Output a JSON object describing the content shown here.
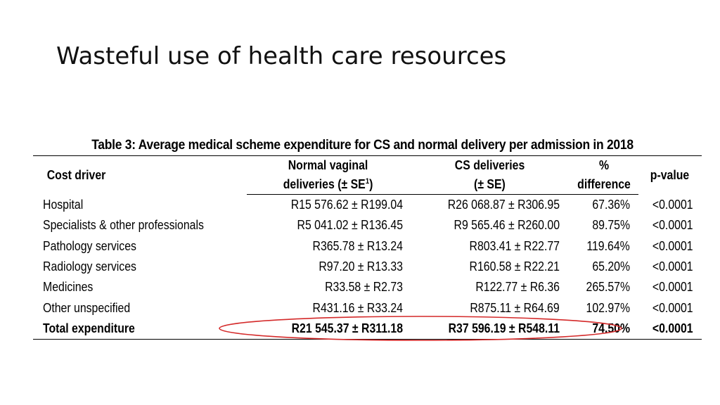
{
  "slide": {
    "title": "Wasteful use of health care resources"
  },
  "table": {
    "caption": "Table 3: Average medical scheme expenditure for CS and normal delivery per admission in 2018",
    "headers": {
      "cost_driver": "Cost driver",
      "normal_line1": "Normal vaginal",
      "normal_line2": "deliveries (± SE",
      "normal_sup": "1",
      "normal_close": ")",
      "cs_line1": "CS deliveries",
      "cs_line2": "(± SE)",
      "pct_line1": "%",
      "pct_line2": "difference",
      "pvalue": "p-value"
    },
    "rows": [
      {
        "driver": "Hospital",
        "normal": "R15 576.62 ± R199.04",
        "cs": "R26 068.87 ± R306.95",
        "pct": "67.36%",
        "p": "<0.0001"
      },
      {
        "driver": "Specialists & other professionals",
        "normal": "R5 041.02 ± R136.45",
        "cs": "R9 565.46 ± R260.00",
        "pct": "89.75%",
        "p": "<0.0001"
      },
      {
        "driver": "Pathology services",
        "normal": "R365.78 ± R13.24",
        "cs": "R803.41 ± R22.77",
        "pct": "119.64%",
        "p": "<0.0001"
      },
      {
        "driver": "Radiology services",
        "normal": "R97.20 ± R13.33",
        "cs": "R160.58 ± R22.21",
        "pct": "65.20%",
        "p": "<0.0001"
      },
      {
        "driver": "Medicines",
        "normal": "R33.58 ± R2.73",
        "cs": "R122.77 ± R6.36",
        "pct": "265.57%",
        "p": "<0.0001"
      },
      {
        "driver": "Other unspecified",
        "normal": "R431.16 ± R33.24",
        "cs": "R875.11 ± R64.69",
        "pct": "102.97%",
        "p": "<0.0001"
      }
    ],
    "total": {
      "driver": "Total expenditure",
      "normal": "R21 545.37 ± R311.18",
      "cs": "R37 596.19 ± R548.11",
      "pct": "74.50%",
      "p": "<0.0001"
    }
  },
  "colors": {
    "highlight": "#d42a2a",
    "text": "#000000"
  }
}
